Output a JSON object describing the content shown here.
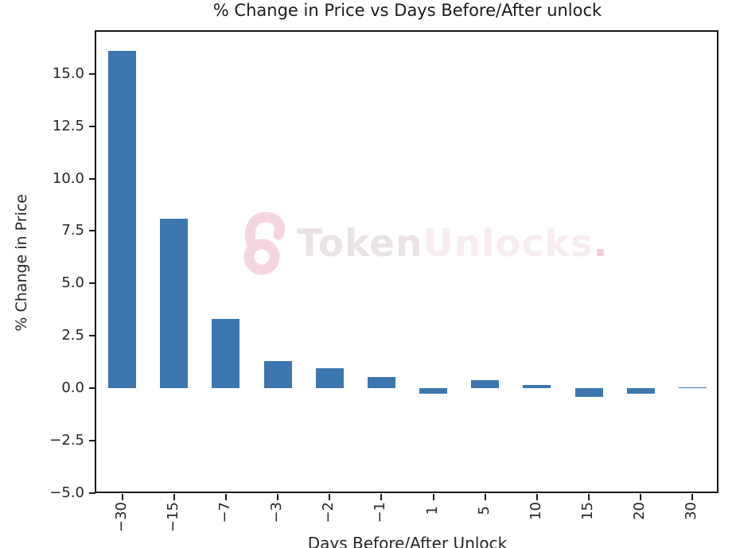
{
  "chart_data": {
    "type": "bar",
    "title": "% Change in Price vs Days Before/After unlock",
    "xlabel": "Days Before/After Unlock",
    "ylabel": "% Change in Price",
    "categories": [
      "-30",
      "-15",
      "-7",
      "-3",
      "-2",
      "-1",
      "1",
      "5",
      "10",
      "15",
      "20",
      "30"
    ],
    "values": [
      16.1,
      8.1,
      3.3,
      1.3,
      0.95,
      0.55,
      -0.25,
      0.4,
      0.15,
      -0.4,
      -0.25,
      0.05
    ],
    "yticks": [
      15.0,
      12.5,
      10.0,
      7.5,
      5.0,
      2.5,
      0.0,
      -2.5,
      -5.0
    ],
    "ytick_labels": [
      "15.0",
      "12.5",
      "10.0",
      "7.5",
      "5.0",
      "2.5",
      "0.0",
      "−2.5",
      "−5.0"
    ],
    "ylim": [
      -5,
      17
    ],
    "bar_color": "#3c76af",
    "grid": false,
    "legend_position": "none"
  },
  "watermark": {
    "icon": "open-padlock-icon",
    "brand_primary": "Token",
    "brand_secondary": "Unlocks",
    "brand_period": ".",
    "icon_color": "#f6d6de",
    "primary_color": "#e9e3e5",
    "secondary_color": "#f8edf0",
    "period_color": "#f3ccd7"
  }
}
